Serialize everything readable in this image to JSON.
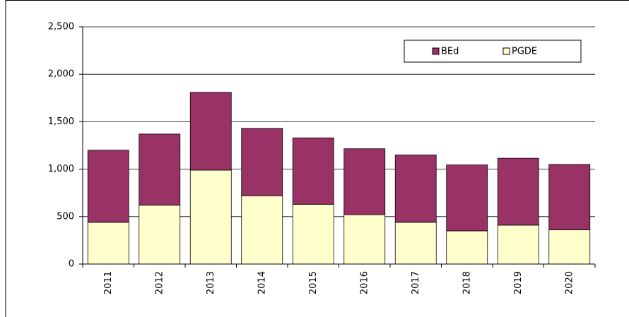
{
  "chart_data": {
    "type": "stacked-bar",
    "categories": [
      "2011",
      "2012",
      "2013",
      "2014",
      "2015",
      "2016",
      "2017",
      "2018",
      "2019",
      "2020"
    ],
    "series": [
      {
        "name": "PGDE",
        "color": "#ffffcc",
        "values": [
          440,
          620,
          990,
          720,
          630,
          520,
          440,
          350,
          410,
          360
        ]
      },
      {
        "name": "BEd",
        "color": "#993366",
        "values": [
          760,
          750,
          820,
          710,
          700,
          695,
          710,
          695,
          705,
          690
        ]
      }
    ],
    "ylim": [
      0,
      2500
    ],
    "yticks": [
      0,
      500,
      {
        "value": 1000,
        "label": "1,000"
      },
      {
        "value": 1500,
        "label": "1,500"
      },
      {
        "value": 2000,
        "label": "2,000"
      },
      {
        "value": 2500,
        "label": "2,500"
      }
    ],
    "grid": true,
    "legend": "top-right"
  }
}
